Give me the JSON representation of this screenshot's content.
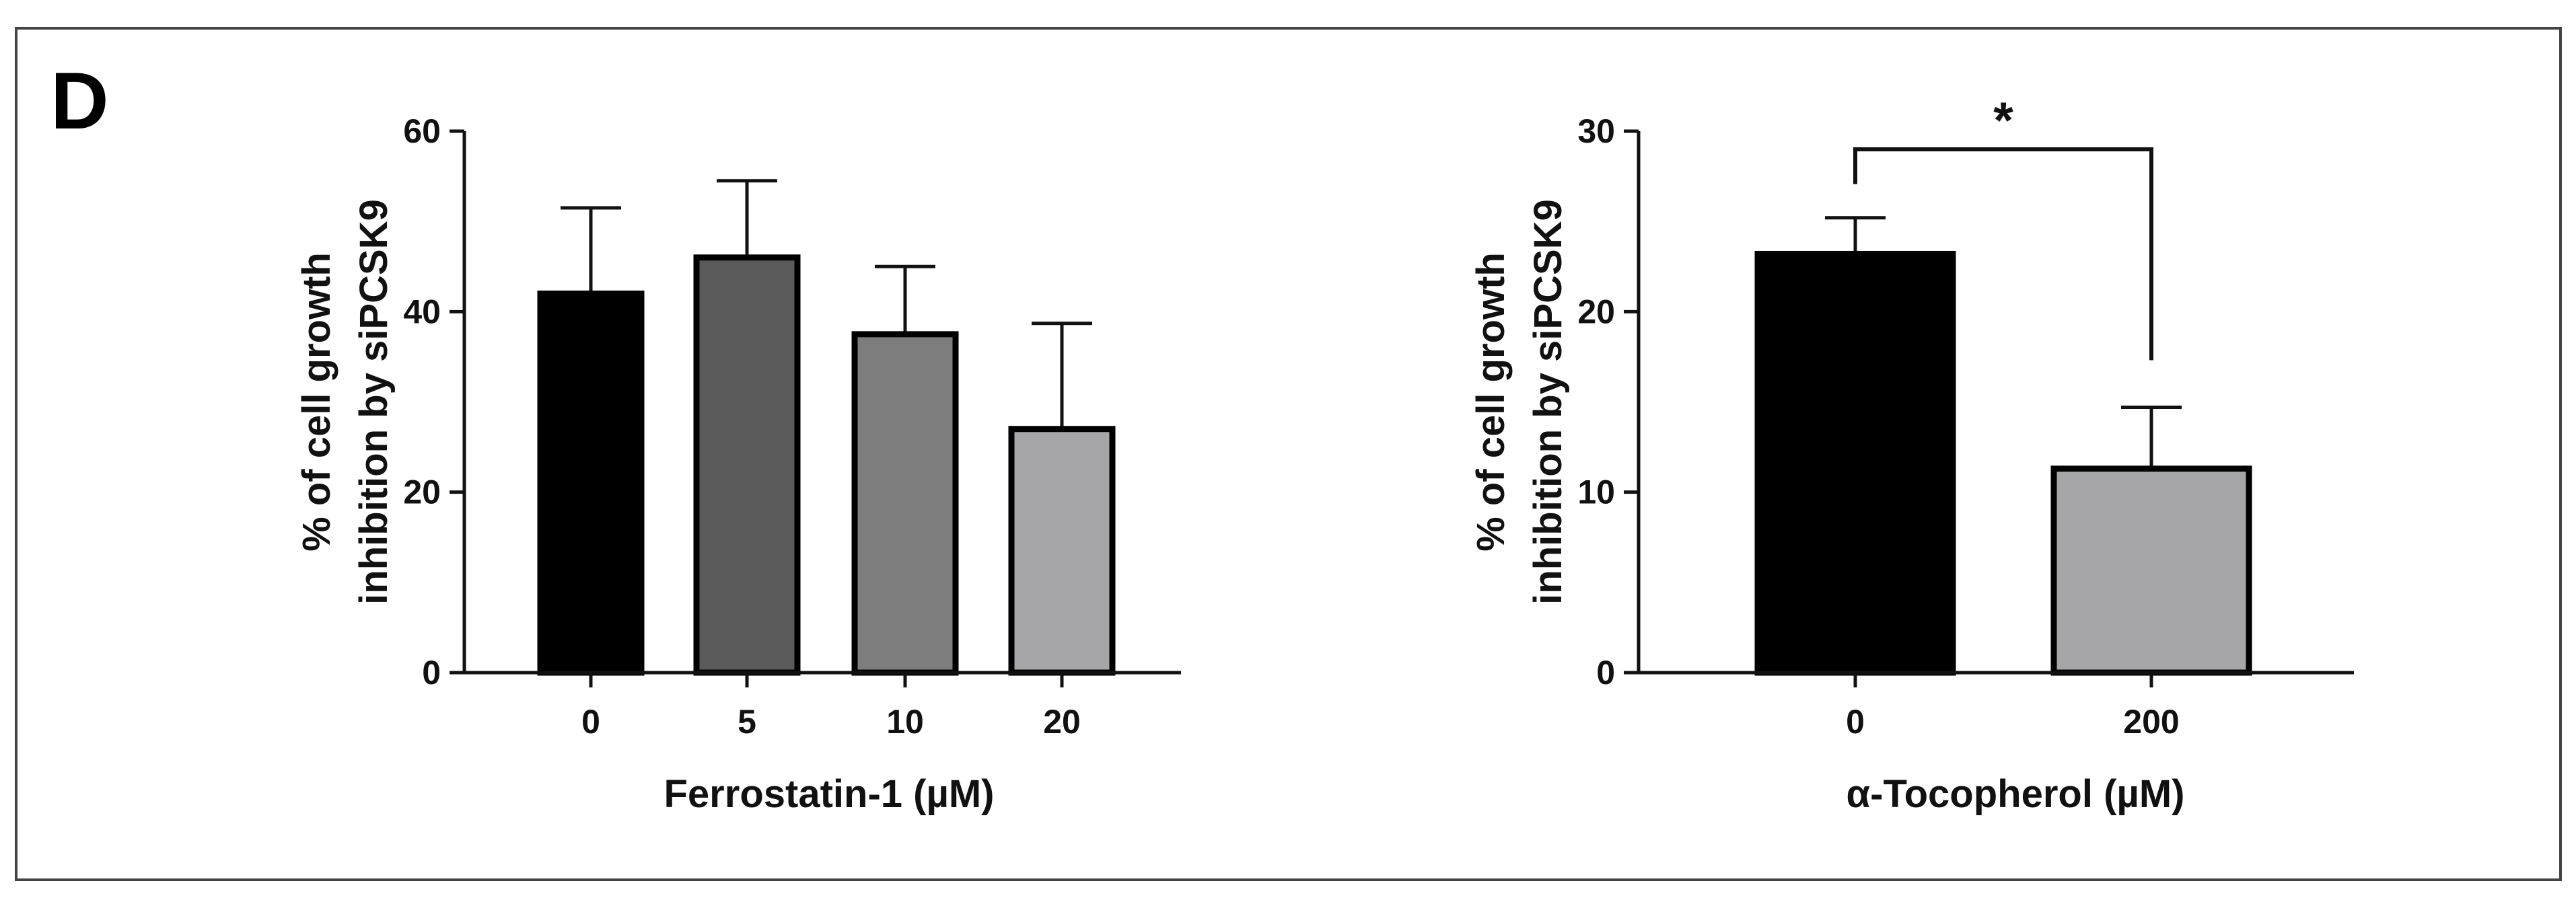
{
  "panel_label": "D",
  "chart_data": [
    {
      "type": "bar",
      "categories": [
        "0",
        "5",
        "10",
        "20"
      ],
      "values": [
        42,
        46,
        37.5,
        27
      ],
      "errors": [
        9.5,
        8.5,
        7.5,
        11.7
      ],
      "colors": [
        "#000000",
        "#5a5a5a",
        "#7d7d7d",
        "#a6a6a8"
      ],
      "ylim": [
        0,
        60
      ],
      "yticks": [
        0,
        20,
        40,
        60
      ],
      "xlabel": "Ferrostatin-1 (µM)",
      "ylabel_lines": [
        "% of cell growth",
        "inhibition by siPCSK9"
      ]
    },
    {
      "type": "bar",
      "categories": [
        "0",
        "200"
      ],
      "values": [
        23.2,
        11.3
      ],
      "errors": [
        2.0,
        3.4
      ],
      "colors": [
        "#000000",
        "#a6a6a8"
      ],
      "ylim": [
        0,
        30
      ],
      "yticks": [
        0,
        10,
        20,
        30
      ],
      "xlabel": "α-Tocopherol (µM)",
      "ylabel_lines": [
        "% of cell growth",
        "inhibition by siPCSK9"
      ],
      "significance": {
        "between": [
          0,
          1
        ],
        "label": "*"
      }
    }
  ]
}
